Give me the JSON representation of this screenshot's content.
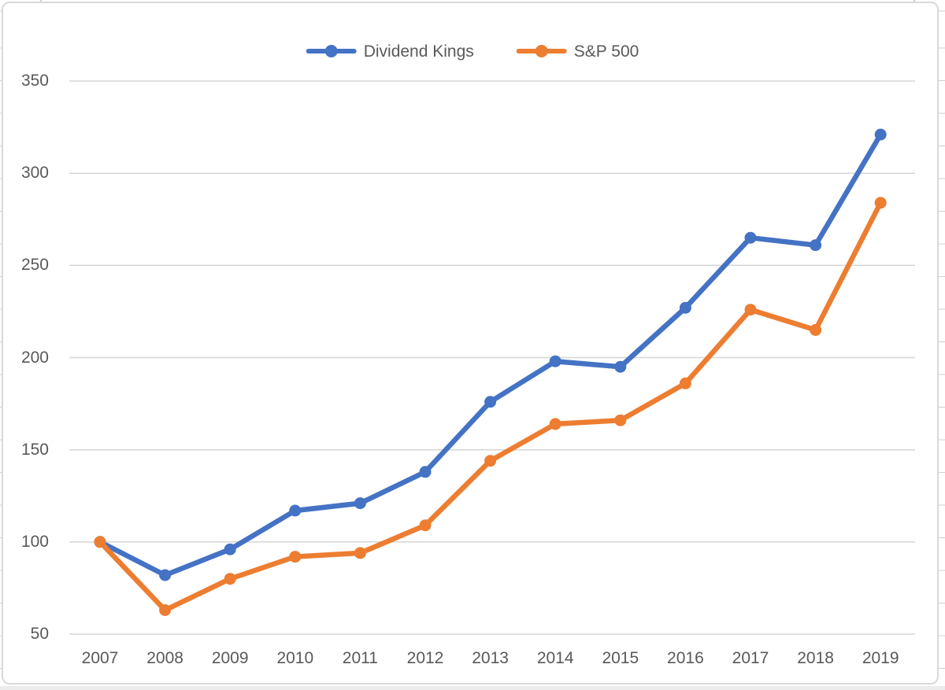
{
  "chart_data": {
    "type": "line",
    "title": "",
    "xlabel": "",
    "ylabel": "",
    "categories": [
      "2007",
      "2008",
      "2009",
      "2010",
      "2011",
      "2012",
      "2013",
      "2014",
      "2015",
      "2016",
      "2017",
      "2018",
      "2019"
    ],
    "series": [
      {
        "name": "Dividend Kings",
        "color": "#4472C4",
        "values": [
          100,
          82,
          96,
          117,
          121,
          138,
          176,
          198,
          195,
          227,
          265,
          261,
          321
        ]
      },
      {
        "name": "S&P 500",
        "color": "#ED7D31",
        "values": [
          100,
          63,
          80,
          92,
          94,
          109,
          144,
          164,
          166,
          186,
          226,
          215,
          284
        ]
      }
    ],
    "ylim": [
      50,
      350
    ],
    "yticks": [
      350,
      300,
      250,
      200,
      150,
      100,
      50
    ],
    "grid": true,
    "legend_position": "top-center"
  },
  "colors": {
    "gridline": "#d6d6d6",
    "axis_text": "#595959",
    "chart_border": "#d9d9d9",
    "sheet_gridline": "#cfcfcf"
  }
}
